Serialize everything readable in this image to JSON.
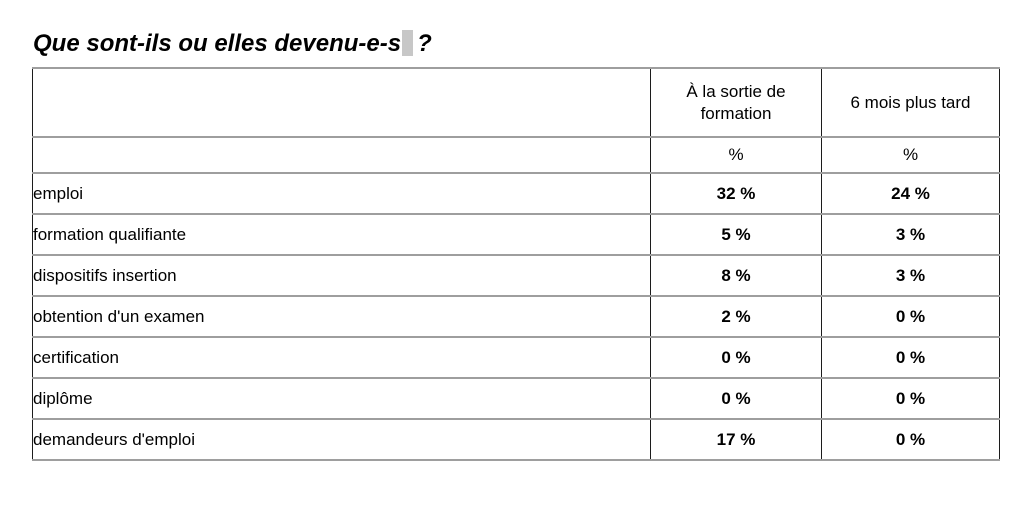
{
  "title": {
    "text": "Que sont-ils ou elles devenu-e-s",
    "question_mark": "?"
  },
  "table": {
    "columns": [
      {
        "label": ""
      },
      {
        "label": "À la sortie de formation"
      },
      {
        "label": "6 mois plus tard"
      }
    ],
    "unit_row": {
      "label": "",
      "at_exit": "%",
      "six_months": "%"
    },
    "rows": [
      {
        "label": "emploi",
        "at_exit": "32 %",
        "six_months": "24 %"
      },
      {
        "label": "formation qualifiante",
        "at_exit": "5 %",
        "six_months": "3 %"
      },
      {
        "label": "dispositifs insertion",
        "at_exit": "8 %",
        "six_months": "3 %"
      },
      {
        "label": "obtention d'un examen",
        "at_exit": "2 %",
        "six_months": "0 %"
      },
      {
        "label": "certification",
        "at_exit": "0 %",
        "six_months": "0 %"
      },
      {
        "label": "diplôme",
        "at_exit": "0 %",
        "six_months": "0 %"
      },
      {
        "label": "demandeurs d'emploi",
        "at_exit": "17 %",
        "six_months": "0 %"
      }
    ]
  },
  "colors": {
    "highlight_gray": "#c7c7c7",
    "border_horizontal": "#9e9e9e",
    "border_vertical": "#1c1c1c",
    "text": "#000000",
    "background": "#ffffff"
  }
}
